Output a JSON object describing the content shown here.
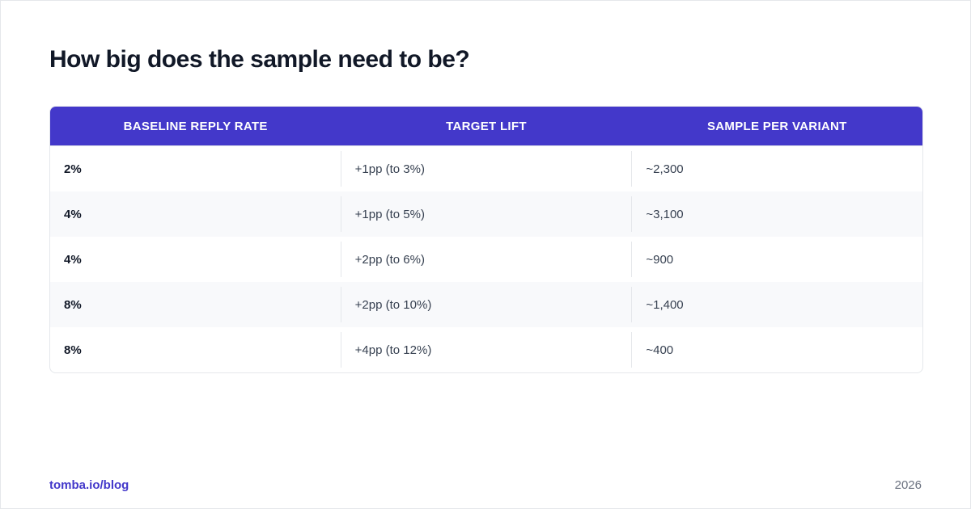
{
  "header": {
    "title": "How big does the sample need to be?"
  },
  "table": {
    "columns": [
      "BASELINE REPLY RATE",
      "TARGET LIFT",
      "SAMPLE PER VARIANT"
    ],
    "rows": [
      [
        "2%",
        "+1pp (to 3%)",
        "~2,300"
      ],
      [
        "4%",
        "+1pp (to 5%)",
        "~3,100"
      ],
      [
        "4%",
        "+2pp (to 6%)",
        "~900"
      ],
      [
        "8%",
        "+2pp (to 10%)",
        "~1,400"
      ],
      [
        "8%",
        "+4pp (to 12%)",
        "~400"
      ]
    ]
  },
  "footer": {
    "source": "tomba.io/blog",
    "year": "2026"
  }
}
